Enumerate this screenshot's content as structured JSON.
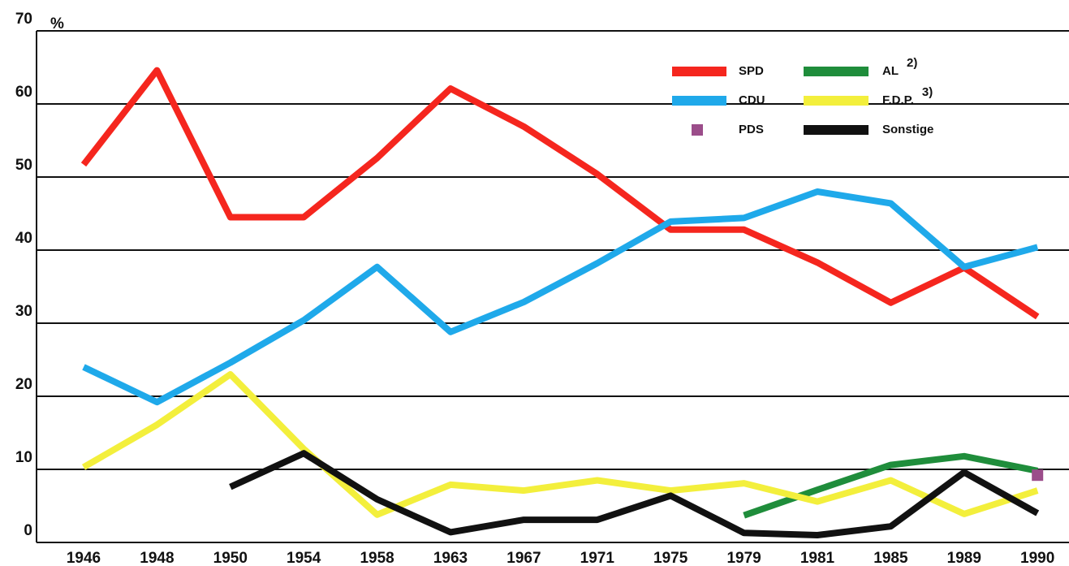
{
  "chart_data": {
    "type": "line",
    "y_unit": "%",
    "categories": [
      "1946",
      "1948",
      "1950",
      "1954",
      "1958",
      "1963",
      "1967",
      "1971",
      "1975",
      "1979",
      "1981",
      "1985",
      "1989",
      "1990"
    ],
    "series": [
      {
        "name": "SPD",
        "color": "#f5261e",
        "values": [
          51.7,
          64.6,
          44.5,
          44.5,
          52.6,
          62.1,
          56.9,
          50.4,
          42.8,
          42.8,
          38.3,
          32.8,
          37.6,
          30.9
        ]
      },
      {
        "name": "AL",
        "note": "2)",
        "color": "#1f8d3b",
        "values": [
          null,
          null,
          null,
          null,
          null,
          null,
          null,
          null,
          null,
          3.7,
          7.2,
          10.6,
          11.8,
          9.8
        ]
      },
      {
        "name": "CDU",
        "color": "#1fa9ea",
        "values": [
          24.0,
          19.2,
          24.6,
          30.4,
          37.7,
          28.8,
          32.9,
          38.2,
          43.9,
          44.4,
          48.0,
          46.4,
          37.7,
          40.4
        ]
      },
      {
        "name": "F.D.P.",
        "note": "3)",
        "color": "#f3ef3c",
        "values": [
          10.3,
          16.1,
          23.0,
          12.8,
          3.8,
          7.9,
          7.1,
          8.5,
          7.1,
          8.1,
          5.6,
          8.5,
          3.9,
          7.1
        ]
      },
      {
        "name": "PDS",
        "color": "#9b4d8a",
        "marker": "square",
        "values": [
          null,
          null,
          null,
          null,
          null,
          null,
          null,
          null,
          null,
          null,
          null,
          null,
          null,
          9.2
        ]
      },
      {
        "name": "Sonstige",
        "color": "#111111",
        "values": [
          null,
          null,
          7.6,
          12.2,
          5.9,
          1.4,
          3.1,
          3.1,
          6.4,
          1.3,
          1.0,
          2.2,
          9.6,
          4.0
        ]
      }
    ],
    "ylim": [
      0,
      70
    ],
    "yticks": [
      0,
      10,
      20,
      30,
      40,
      50,
      60,
      70
    ],
    "grid": true,
    "legend": "top-right"
  }
}
